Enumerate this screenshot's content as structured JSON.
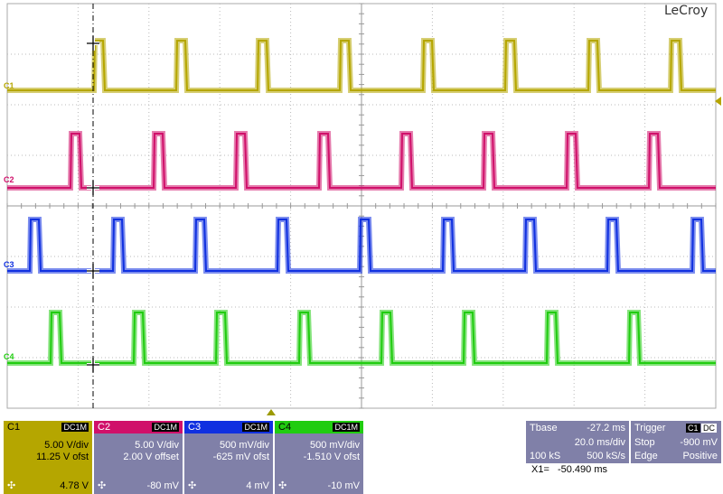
{
  "brand": "LeCroy",
  "colors": {
    "c1": "#b5a600",
    "c2": "#d0106a",
    "c3": "#1030e0",
    "c4": "#20cc10",
    "panel_bg": "#8080a8"
  },
  "channel_labels": [
    "C1",
    "C2",
    "C3",
    "C4"
  ],
  "channels": [
    {
      "name": "C1",
      "coupling": "DC1M",
      "vdiv": "5.00 V/div",
      "offset": "11.25 V ofst",
      "readout": "4.78 V"
    },
    {
      "name": "C2",
      "coupling": "DC1M",
      "vdiv": "5.00 V/div",
      "offset": "2.00 V offset",
      "readout": "-80 mV"
    },
    {
      "name": "C3",
      "coupling": "DC1M",
      "vdiv": "500 mV/div",
      "offset": "-625 mV ofst",
      "readout": "4 mV"
    },
    {
      "name": "C4",
      "coupling": "DC1M",
      "vdiv": "500 mV/div",
      "offset": "-1.510 V ofst",
      "readout": "-10 mV"
    }
  ],
  "timebase": {
    "label": "Tbase",
    "delay": "-27.2 ms",
    "tdiv": "20.0 ms/div",
    "samples": "100 kS",
    "rate": "500 kS/s"
  },
  "trigger": {
    "label": "Trigger",
    "source": "C1",
    "coupling": "DC",
    "mode": "Stop",
    "level": "-900 mV",
    "type": "Edge",
    "slope": "Positive"
  },
  "cursor": {
    "label": "X1=",
    "value": "-50.490 ms"
  }
}
